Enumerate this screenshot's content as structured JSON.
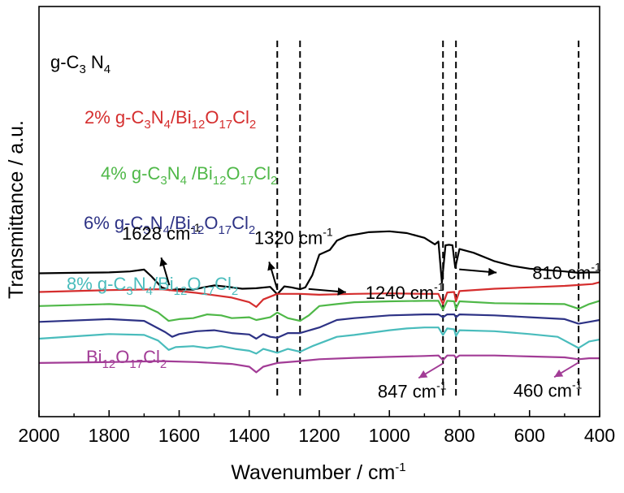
{
  "chart_data": {
    "type": "line",
    "xlabel": "Wavenumber / cm",
    "xlabel_sup": "-1",
    "ylabel": "Transmittance / a.u.",
    "xlim": [
      2000,
      400
    ],
    "x_reversed": true,
    "y_ticks_shown": false,
    "x_ticks": [
      "2000",
      "1800",
      "1600",
      "1400",
      "1200",
      "1000",
      "800",
      "600",
      "400"
    ],
    "x_tick_values": [
      2000,
      1800,
      1600,
      1400,
      1200,
      1000,
      800,
      600,
      400
    ],
    "grid": false,
    "vertical_reference_lines": [
      1320,
      1255,
      847,
      810,
      460
    ],
    "series": [
      {
        "name": "g-C3N4",
        "label_parts": [
          [
            "g-C",
            "n"
          ],
          [
            "3",
            "sub"
          ],
          [
            " N",
            "n"
          ],
          [
            "4",
            "sub"
          ]
        ],
        "color": "#000000",
        "offset": 6,
        "points": [
          [
            2000,
            3.0
          ],
          [
            1900,
            3.05
          ],
          [
            1800,
            3.1
          ],
          [
            1740,
            3.2
          ],
          [
            1700,
            3.4
          ],
          [
            1680,
            2.7
          ],
          [
            1650,
            1.5
          ],
          [
            1628,
            1.2
          ],
          [
            1600,
            1.3
          ],
          [
            1560,
            1.25
          ],
          [
            1530,
            1.5
          ],
          [
            1500,
            1.7
          ],
          [
            1460,
            1.55
          ],
          [
            1420,
            1.35
          ],
          [
            1380,
            1.4
          ],
          [
            1340,
            1.55
          ],
          [
            1320,
            0.75
          ],
          [
            1300,
            1.6
          ],
          [
            1280,
            1.5
          ],
          [
            1255,
            1.3
          ],
          [
            1240,
            1.5
          ],
          [
            1220,
            2.8
          ],
          [
            1200,
            5.0
          ],
          [
            1170,
            5.5
          ],
          [
            1150,
            6.5
          ],
          [
            1120,
            7.0
          ],
          [
            1060,
            7.4
          ],
          [
            1000,
            7.5
          ],
          [
            950,
            7.3
          ],
          [
            900,
            6.8
          ],
          [
            870,
            6.1
          ],
          [
            860,
            6.4
          ],
          [
            850,
            2.0
          ],
          [
            840,
            6.0
          ],
          [
            830,
            6.05
          ],
          [
            820,
            6.0
          ],
          [
            812,
            3.6
          ],
          [
            800,
            5.6
          ],
          [
            760,
            5.2
          ],
          [
            700,
            4.3
          ],
          [
            650,
            3.8
          ],
          [
            600,
            3.5
          ],
          [
            500,
            3.2
          ],
          [
            460,
            3.05
          ],
          [
            430,
            3.1
          ],
          [
            400,
            3.1
          ]
        ]
      },
      {
        "name": "2% g-C3N4/Bi12O17Cl2",
        "label_parts": [
          [
            "2% g-C",
            "n"
          ],
          [
            "3",
            "sub"
          ],
          [
            "N",
            "n"
          ],
          [
            "4",
            "sub"
          ],
          [
            "/Bi",
            "n"
          ],
          [
            "12",
            "sub"
          ],
          [
            "O",
            "n"
          ],
          [
            "17",
            "sub"
          ],
          [
            "Cl",
            "n"
          ],
          [
            "2",
            "sub"
          ]
        ],
        "color": "#d52e2e",
        "offset": 4.5,
        "points": [
          [
            2000,
            2.5
          ],
          [
            1800,
            2.7
          ],
          [
            1650,
            2.8
          ],
          [
            1550,
            2.4
          ],
          [
            1450,
            1.9
          ],
          [
            1400,
            1.4
          ],
          [
            1380,
            0.9
          ],
          [
            1360,
            1.7
          ],
          [
            1320,
            2.3
          ],
          [
            1255,
            2.3
          ],
          [
            1200,
            2.2
          ],
          [
            1100,
            2.3
          ],
          [
            1000,
            2.35
          ],
          [
            900,
            2.3
          ],
          [
            860,
            2.3
          ],
          [
            847,
            1.2
          ],
          [
            835,
            2.45
          ],
          [
            815,
            2.5
          ],
          [
            810,
            1.5
          ],
          [
            800,
            2.6
          ],
          [
            700,
            2.85
          ],
          [
            600,
            3.0
          ],
          [
            500,
            3.15
          ],
          [
            460,
            3.25
          ],
          [
            420,
            3.35
          ],
          [
            400,
            3.55
          ]
        ]
      },
      {
        "name": "4% g-C3N4 /Bi12O17Cl2",
        "label_parts": [
          [
            "4% g-C",
            "n"
          ],
          [
            "3",
            "sub"
          ],
          [
            "N",
            "n"
          ],
          [
            "4",
            "sub"
          ],
          [
            " /Bi",
            "n"
          ],
          [
            "12",
            "sub"
          ],
          [
            "O",
            "n"
          ],
          [
            "17",
            "sub"
          ],
          [
            "Cl",
            "n"
          ],
          [
            "2",
            "sub"
          ]
        ],
        "color": "#4fb848",
        "offset": 3,
        "points": [
          [
            2000,
            2.5
          ],
          [
            1800,
            2.7
          ],
          [
            1700,
            2.5
          ],
          [
            1660,
            1.8
          ],
          [
            1630,
            0.9
          ],
          [
            1600,
            1.1
          ],
          [
            1560,
            1.2
          ],
          [
            1520,
            1.6
          ],
          [
            1480,
            1.5
          ],
          [
            1450,
            1.2
          ],
          [
            1400,
            1.3
          ],
          [
            1380,
            1.0
          ],
          [
            1340,
            1.3
          ],
          [
            1320,
            1.8
          ],
          [
            1290,
            1.2
          ],
          [
            1255,
            0.9
          ],
          [
            1230,
            1.5
          ],
          [
            1200,
            2.5
          ],
          [
            1150,
            2.7
          ],
          [
            1100,
            2.9
          ],
          [
            1000,
            3.0
          ],
          [
            900,
            3.05
          ],
          [
            860,
            3.05
          ],
          [
            847,
            2.1
          ],
          [
            835,
            3.05
          ],
          [
            815,
            3.0
          ],
          [
            810,
            2.2
          ],
          [
            800,
            3.0
          ],
          [
            700,
            2.8
          ],
          [
            600,
            2.75
          ],
          [
            500,
            2.7
          ],
          [
            460,
            2.2
          ],
          [
            430,
            2.7
          ],
          [
            400,
            3.05
          ]
        ]
      },
      {
        "name": "6% g-C3N4/Bi12O17Cl2",
        "label_parts": [
          [
            "6% g-C",
            "n"
          ],
          [
            "3",
            "sub"
          ],
          [
            "N",
            "n"
          ],
          [
            "4",
            "sub"
          ],
          [
            "/Bi",
            "n"
          ],
          [
            "12",
            "sub"
          ],
          [
            "O",
            "n"
          ],
          [
            "17",
            "sub"
          ],
          [
            "Cl",
            "n"
          ],
          [
            "2",
            "sub"
          ]
        ],
        "color": "#2d3285",
        "offset": 1.6,
        "points": [
          [
            2000,
            2.2
          ],
          [
            1800,
            2.5
          ],
          [
            1700,
            2.3
          ],
          [
            1640,
            1.1
          ],
          [
            1620,
            0.6
          ],
          [
            1600,
            0.9
          ],
          [
            1550,
            1.2
          ],
          [
            1500,
            1.3
          ],
          [
            1450,
            1.0
          ],
          [
            1400,
            0.85
          ],
          [
            1380,
            0.4
          ],
          [
            1360,
            0.9
          ],
          [
            1340,
            0.6
          ],
          [
            1320,
            0.5
          ],
          [
            1290,
            1.0
          ],
          [
            1255,
            1.0
          ],
          [
            1200,
            1.6
          ],
          [
            1150,
            2.4
          ],
          [
            1100,
            2.6
          ],
          [
            1000,
            2.9
          ],
          [
            900,
            3.0
          ],
          [
            860,
            3.0
          ],
          [
            847,
            2.7
          ],
          [
            835,
            3.0
          ],
          [
            815,
            3.0
          ],
          [
            810,
            2.7
          ],
          [
            800,
            3.0
          ],
          [
            700,
            2.9
          ],
          [
            600,
            2.7
          ],
          [
            500,
            2.5
          ],
          [
            460,
            2.0
          ],
          [
            430,
            2.2
          ],
          [
            400,
            2.4
          ]
        ]
      },
      {
        "name": "8% g-C3N4/Bi12O17Cl2",
        "label_parts": [
          [
            "8% g-C",
            "n"
          ],
          [
            "3",
            "sub"
          ],
          [
            "N",
            "n"
          ],
          [
            "4",
            "sub"
          ],
          [
            "/Bi",
            "n"
          ],
          [
            "12",
            "sub"
          ],
          [
            "O",
            "n"
          ],
          [
            "17",
            "sub"
          ],
          [
            "Cl",
            "n"
          ],
          [
            "2",
            "sub"
          ]
        ],
        "color": "#49bcbc",
        "offset": 0,
        "points": [
          [
            2000,
            2.0
          ],
          [
            1800,
            2.5
          ],
          [
            1700,
            2.4
          ],
          [
            1660,
            1.8
          ],
          [
            1630,
            0.8
          ],
          [
            1610,
            1.1
          ],
          [
            1560,
            1.2
          ],
          [
            1520,
            1.0
          ],
          [
            1480,
            1.2
          ],
          [
            1440,
            0.9
          ],
          [
            1400,
            0.7
          ],
          [
            1380,
            0.4
          ],
          [
            1360,
            0.9
          ],
          [
            1320,
            0.5
          ],
          [
            1290,
            0.9
          ],
          [
            1255,
            0.6
          ],
          [
            1220,
            1.2
          ],
          [
            1150,
            2.2
          ],
          [
            1100,
            2.4
          ],
          [
            1000,
            2.9
          ],
          [
            950,
            3.1
          ],
          [
            900,
            3.2
          ],
          [
            860,
            3.2
          ],
          [
            847,
            2.4
          ],
          [
            835,
            3.1
          ],
          [
            815,
            3.0
          ],
          [
            810,
            2.3
          ],
          [
            800,
            2.9
          ],
          [
            700,
            2.8
          ],
          [
            600,
            2.5
          ],
          [
            520,
            2.2
          ],
          [
            460,
            1.0
          ],
          [
            430,
            1.7
          ],
          [
            400,
            1.9
          ]
        ]
      },
      {
        "name": "Bi12O17Cl2",
        "label_parts": [
          [
            "Bi",
            "n"
          ],
          [
            "12",
            "sub"
          ],
          [
            "O",
            "n"
          ],
          [
            "17",
            "sub"
          ],
          [
            "Cl",
            "n"
          ],
          [
            "2",
            "sub"
          ]
        ],
        "color": "#a23c96",
        "offset": -1.8,
        "points": [
          [
            2000,
            1.2
          ],
          [
            1800,
            1.3
          ],
          [
            1650,
            1.4
          ],
          [
            1550,
            1.3
          ],
          [
            1450,
            1.1
          ],
          [
            1400,
            0.8
          ],
          [
            1380,
            0.2
          ],
          [
            1360,
            0.8
          ],
          [
            1320,
            1.2
          ],
          [
            1255,
            1.4
          ],
          [
            1200,
            1.6
          ],
          [
            1100,
            1.75
          ],
          [
            1000,
            1.85
          ],
          [
            900,
            1.95
          ],
          [
            860,
            2.0
          ],
          [
            847,
            1.5
          ],
          [
            835,
            2.0
          ],
          [
            815,
            2.0
          ],
          [
            810,
            1.75
          ],
          [
            800,
            2.0
          ],
          [
            700,
            2.0
          ],
          [
            600,
            1.9
          ],
          [
            500,
            1.8
          ],
          [
            460,
            1.6
          ],
          [
            430,
            1.7
          ],
          [
            400,
            1.7
          ]
        ]
      }
    ],
    "annotations": [
      {
        "text": "1628 cm",
        "sup": "-1",
        "series": "g-C3N4",
        "x": 1628,
        "arrow": "up"
      },
      {
        "text": "1320 cm",
        "sup": "-1",
        "series": "g-C3N4",
        "x": 1320,
        "arrow": "up"
      },
      {
        "text": "1240 cm",
        "sup": "-1",
        "series": "g-C3N4",
        "x": 1240,
        "arrow": "right"
      },
      {
        "text": "810 cm",
        "sup": "-1",
        "series": "g-C3N4",
        "x": 810,
        "arrow": "right"
      },
      {
        "text": "847 cm",
        "sup": "-1",
        "series": "Bi12O17Cl2",
        "x": 847,
        "arrow": "down-left",
        "color": "#a23c96"
      },
      {
        "text": "460 cm",
        "sup": "-1",
        "series": "Bi12O17Cl2",
        "x": 460,
        "arrow": "down-left",
        "color": "#a23c96"
      }
    ]
  }
}
